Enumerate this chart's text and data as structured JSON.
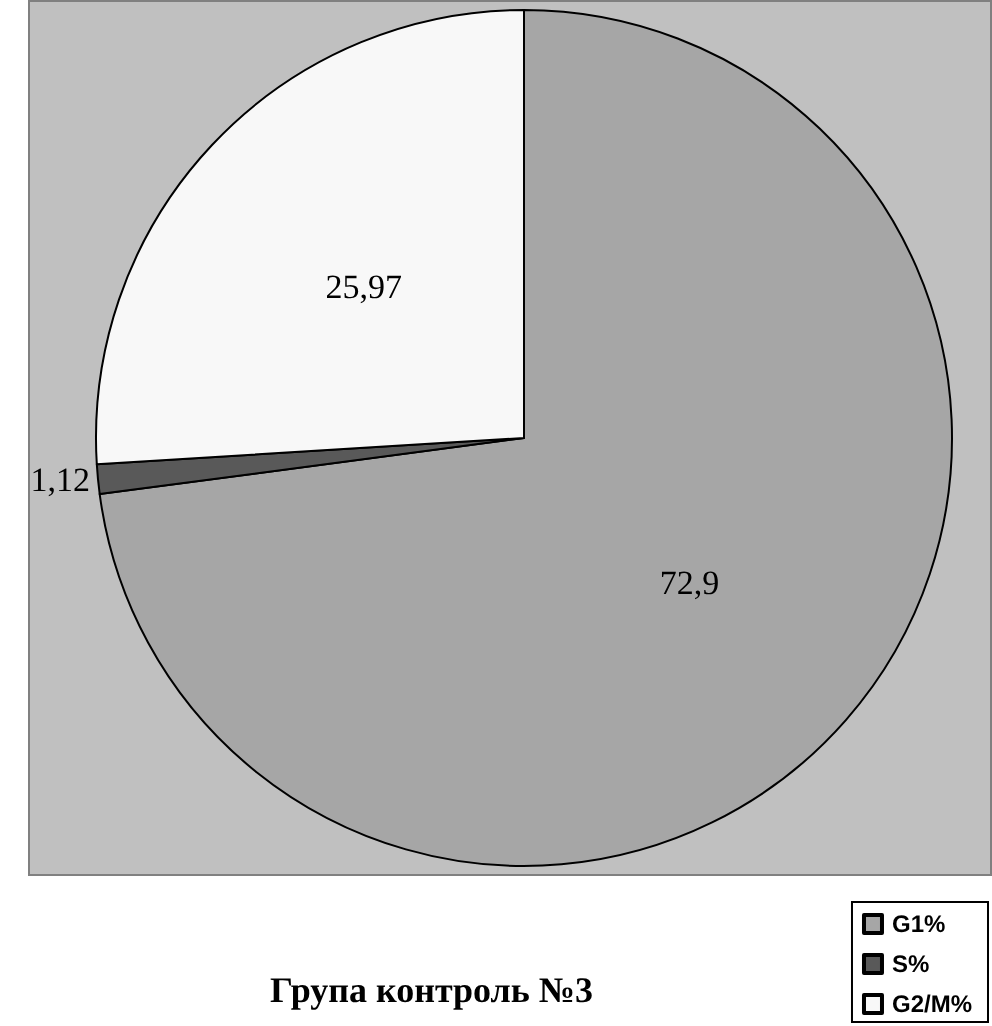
{
  "chart_data": {
    "type": "pie",
    "title": "Група контроль №3",
    "categories": [
      "G1%",
      "S%",
      "G2/M%"
    ],
    "values": [
      72.9,
      1.12,
      25.97
    ],
    "colors": [
      "#a6a6a6",
      "#595959",
      "#f8f8f8"
    ],
    "value_labels": [
      "72,9",
      "1,12",
      "25,97"
    ],
    "legend": "bottom right"
  }
}
